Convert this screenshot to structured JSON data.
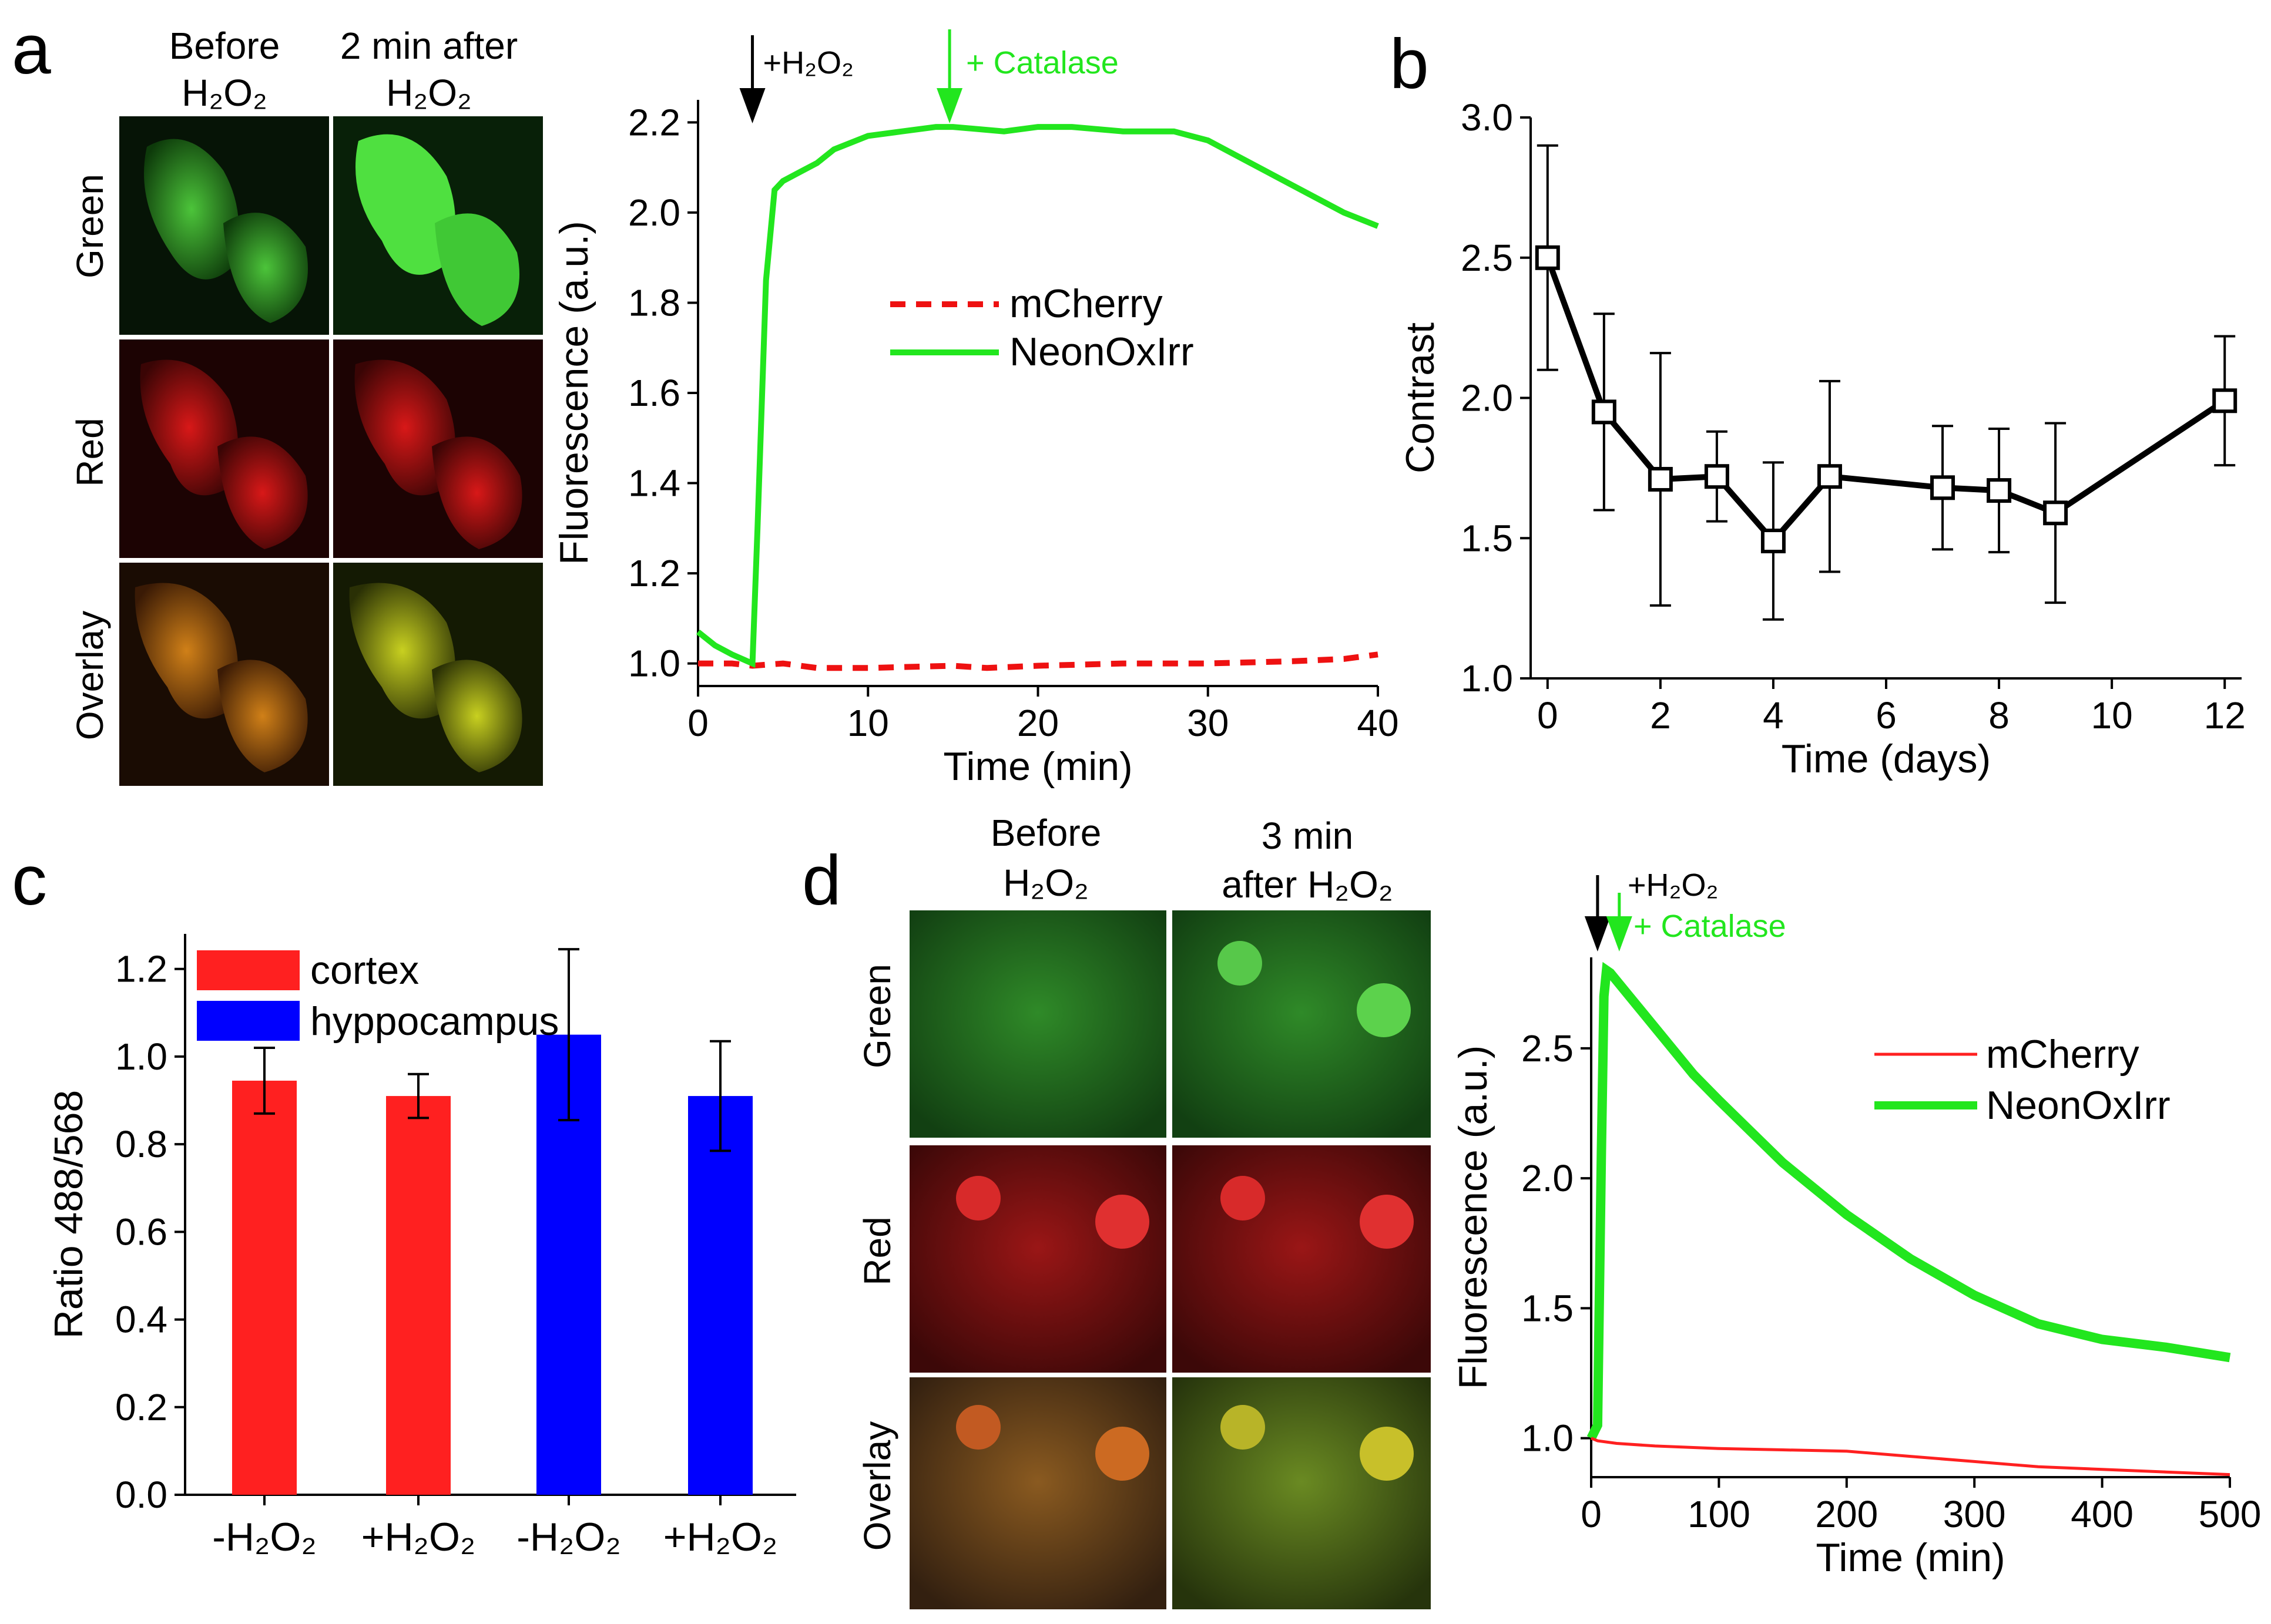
{
  "colors": {
    "green": "#22e61e",
    "red": "#ff2020",
    "blue": "#0000ff",
    "black": "#000000",
    "dashed_red": "#ee1111"
  },
  "panel_labels": {
    "a": "a",
    "b": "b",
    "c": "c",
    "d": "d"
  },
  "micrographs_a": {
    "col1_line1": "Before",
    "col1_line2": "H₂O₂",
    "col2_line1": "2 min after",
    "col2_line2": "H₂O₂",
    "rows": [
      "Green",
      "Red",
      "Overlay"
    ]
  },
  "micrographs_d": {
    "col1_line1": "Before",
    "col1_line2": "H₂O₂",
    "col2_line1": "3 min",
    "col2_line2": "after H₂O₂",
    "rows": [
      "Green",
      "Red",
      "Overlay"
    ]
  },
  "chart_data": [
    {
      "id": "a",
      "type": "line",
      "xlabel": "Time (min)",
      "ylabel": "Fluorescence (a.u.)",
      "xlim": [
        0,
        40
      ],
      "ylim": [
        0.95,
        2.25
      ],
      "xticks": [
        0,
        10,
        20,
        30,
        40
      ],
      "yticks": [
        1.0,
        1.2,
        1.4,
        1.6,
        1.8,
        2.0,
        2.2
      ],
      "legend": [
        "mCherry",
        "NeonOxIrr"
      ],
      "annotations": {
        "h2o2": "+H₂O₂",
        "h2o2_time": 3.2,
        "catalase": "+ Catalase",
        "catalase_time": 14.8
      },
      "series": [
        {
          "name": "mCherry",
          "style": "dashed",
          "x": [
            0,
            2,
            3.2,
            5,
            7,
            10,
            15,
            17,
            20,
            25,
            30,
            35,
            38,
            40
          ],
          "y": [
            1.0,
            1.0,
            0.995,
            1.0,
            0.99,
            0.99,
            0.995,
            0.99,
            0.995,
            1.0,
            1.0,
            1.005,
            1.01,
            1.02
          ]
        },
        {
          "name": "NeonOxIrr",
          "style": "solid",
          "x": [
            0,
            1,
            2,
            3.2,
            3.5,
            4,
            4.5,
            5,
            6,
            7,
            8,
            10,
            12,
            14,
            15,
            18,
            20,
            22,
            25,
            28,
            30,
            32,
            35,
            38,
            40
          ],
          "y": [
            1.07,
            1.04,
            1.02,
            1.0,
            1.3,
            1.85,
            2.05,
            2.07,
            2.09,
            2.11,
            2.14,
            2.17,
            2.18,
            2.19,
            2.19,
            2.18,
            2.19,
            2.19,
            2.18,
            2.18,
            2.16,
            2.12,
            2.06,
            2.0,
            1.97
          ]
        }
      ]
    },
    {
      "id": "b",
      "type": "line",
      "xlabel": "Time (days)",
      "ylabel": "Contrast",
      "xlim": [
        -0.3,
        12.3
      ],
      "ylim": [
        1.0,
        3.0
      ],
      "xticks": [
        0,
        2,
        4,
        6,
        8,
        10,
        12
      ],
      "yticks": [
        1.0,
        1.5,
        2.0,
        2.5,
        3.0
      ],
      "series": [
        {
          "name": "Contrast",
          "x": [
            0,
            1,
            2,
            3,
            4,
            5,
            7,
            8,
            9,
            12
          ],
          "y": [
            2.5,
            1.95,
            1.71,
            1.72,
            1.49,
            1.72,
            1.68,
            1.67,
            1.59,
            1.99
          ],
          "err": [
            0.4,
            0.35,
            0.45,
            0.16,
            0.28,
            0.34,
            0.22,
            0.22,
            0.32,
            0.23
          ]
        }
      ]
    },
    {
      "id": "c",
      "type": "bar",
      "ylabel": "Ratio 488/568",
      "ylim": [
        0,
        1.28
      ],
      "yticks": [
        0.0,
        0.2,
        0.4,
        0.6,
        0.8,
        1.0,
        1.2
      ],
      "categories": [
        "-H₂O₂",
        "+H₂O₂",
        "-H₂O₂",
        "+H₂O₂"
      ],
      "legend": [
        "cortex",
        "hyppocampus"
      ],
      "values": [
        0.945,
        0.91,
        1.05,
        0.91
      ],
      "errors": [
        0.075,
        0.05,
        0.195,
        0.125
      ],
      "groups": [
        "cortex",
        "cortex",
        "hyppocampus",
        "hyppocampus"
      ]
    },
    {
      "id": "d",
      "type": "line",
      "xlabel": "Time (min)",
      "ylabel": "Fluorescence (a.u.)",
      "xlim": [
        0,
        500
      ],
      "ylim": [
        0.85,
        2.85
      ],
      "xticks": [
        0,
        100,
        200,
        300,
        400,
        500
      ],
      "yticks": [
        1.0,
        1.5,
        2.0,
        2.5
      ],
      "legend": [
        "mCherry",
        "NeonOxIrr"
      ],
      "annotations": {
        "h2o2": "+H₂O₂",
        "h2o2_time": 5,
        "catalase": "+ Catalase",
        "catalase_time": 22
      },
      "series": [
        {
          "name": "mCherry",
          "style": "thin",
          "x": [
            0,
            5,
            20,
            50,
            100,
            150,
            200,
            250,
            300,
            350,
            400,
            450,
            500
          ],
          "y": [
            1.0,
            0.99,
            0.98,
            0.97,
            0.96,
            0.955,
            0.95,
            0.93,
            0.91,
            0.89,
            0.88,
            0.87,
            0.86
          ]
        },
        {
          "name": "NeonOxIrr",
          "style": "thick",
          "x": [
            0,
            5,
            8,
            10,
            12,
            15,
            30,
            50,
            80,
            100,
            150,
            200,
            250,
            300,
            350,
            400,
            450,
            500
          ],
          "y": [
            1.0,
            1.05,
            2.1,
            2.7,
            2.8,
            2.79,
            2.7,
            2.58,
            2.4,
            2.3,
            2.06,
            1.86,
            1.69,
            1.55,
            1.44,
            1.38,
            1.35,
            1.31
          ]
        }
      ]
    }
  ]
}
